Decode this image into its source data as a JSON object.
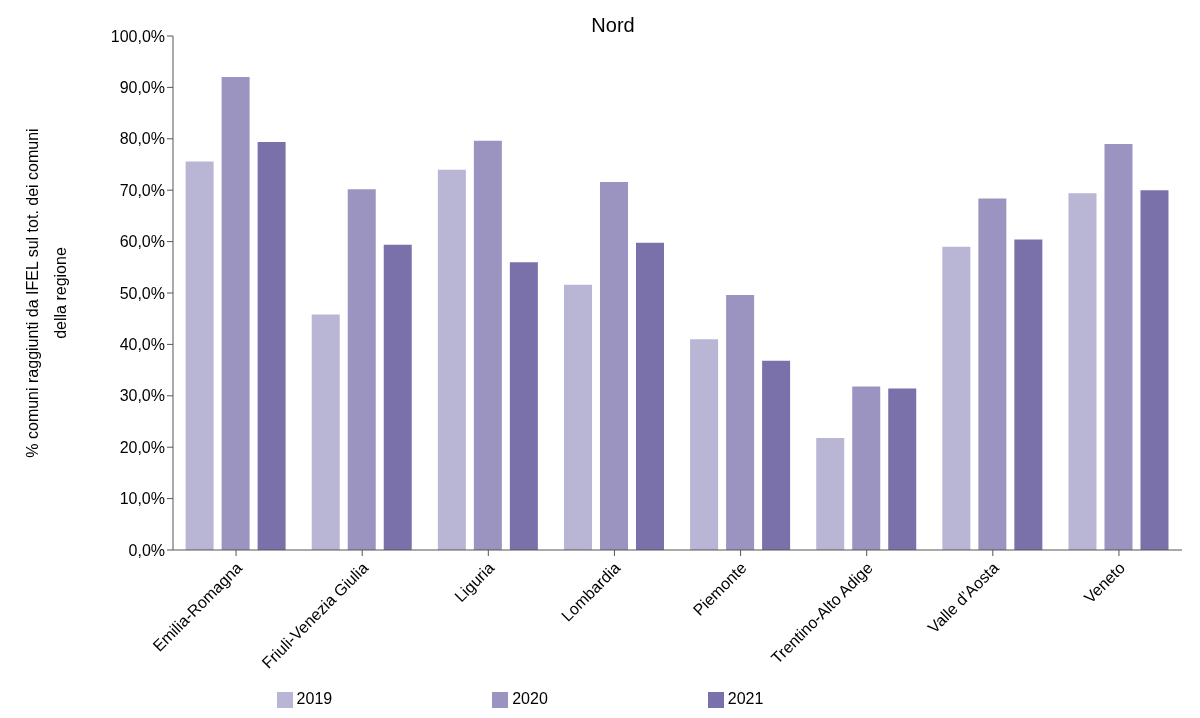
{
  "chart_data": {
    "type": "bar",
    "title": "Nord",
    "ylabel": "% comuni raggiunti da IFEL sul tot. dei comuni\ndella regione",
    "categories": [
      "Emilia-Romagna",
      "Friuli-Venezia Giulia",
      "Liguria",
      "Lombardia",
      "Piemonte",
      "Trentino-Alto Adige",
      "Valle d’Aosta",
      "Veneto"
    ],
    "series": [
      {
        "name": "2019",
        "color": "#b9b5d4",
        "values": [
          75.6,
          45.8,
          74.0,
          51.6,
          41.0,
          21.8,
          59.0,
          69.4
        ]
      },
      {
        "name": "2020",
        "color": "#9b93c0",
        "values": [
          92.0,
          70.2,
          79.6,
          71.6,
          49.6,
          31.8,
          68.4,
          79.0
        ]
      },
      {
        "name": "2021",
        "color": "#7a70aa",
        "values": [
          79.4,
          59.4,
          56.0,
          59.8,
          36.8,
          31.4,
          60.4,
          70.0
        ]
      }
    ],
    "ylim": [
      0,
      100
    ],
    "yticks": [
      {
        "value": 0,
        "label": "0,0%"
      },
      {
        "value": 10,
        "label": "10,0%"
      },
      {
        "value": 20,
        "label": "20,0%"
      },
      {
        "value": 30,
        "label": "30,0%"
      },
      {
        "value": 40,
        "label": "40,0%"
      },
      {
        "value": 50,
        "label": "50,0%"
      },
      {
        "value": 60,
        "label": "60,0%"
      },
      {
        "value": 70,
        "label": "70,0%"
      },
      {
        "value": 80,
        "label": "80,0%"
      },
      {
        "value": 90,
        "label": "90,0%"
      },
      {
        "value": 100,
        "label": "100,0%"
      }
    ],
    "grid": false,
    "legend": "bottom"
  }
}
